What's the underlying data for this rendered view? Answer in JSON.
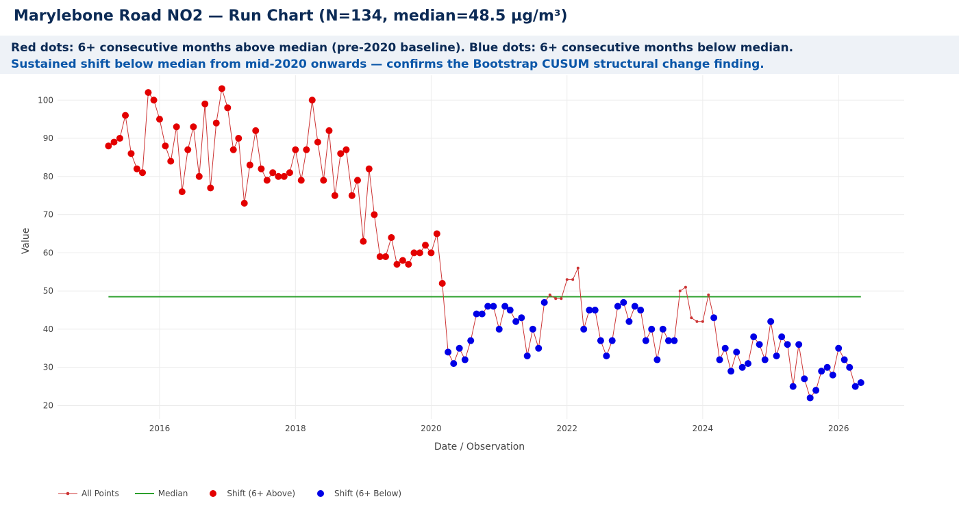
{
  "title": "Marylebone Road NO2 — Run Chart  (N=134, median=48.5 µg/m³)",
  "annotations": [
    "Red dots: 6+ consecutive months above median (pre-2020 baseline). Blue dots: 6+ consecutive months below median.",
    "Sustained shift below median from mid-2020 onwards — confirms the Bootstrap CUSUM structural change finding."
  ],
  "colors": {
    "line": "#cc3333",
    "median": "#2ca02c",
    "above": "#e30000",
    "below": "#0000e6",
    "grid": "#ececec",
    "title": "#0b2a55",
    "note_blue": "#0a56a8"
  },
  "chart_data": {
    "type": "line",
    "xlabel": "Date / Observation",
    "ylabel": "Value",
    "xlim": [
      "2014-07-01",
      "2026-12-20"
    ],
    "ylim": [
      16.5,
      106.5
    ],
    "x_ticks": [
      "2016",
      "2018",
      "2020",
      "2022",
      "2024",
      "2026"
    ],
    "y_ticks": [
      20,
      30,
      40,
      50,
      60,
      70,
      80,
      90,
      100
    ],
    "grid": true,
    "legend_position": "bottom-left",
    "median": 48.5,
    "x_start": "2015-04",
    "x_step": "1 month",
    "values": [
      88,
      89,
      90,
      96,
      86,
      82,
      81,
      102,
      100,
      95,
      88,
      84,
      93,
      76,
      87,
      93,
      80,
      99,
      77,
      94,
      103,
      98,
      87,
      90,
      73,
      83,
      92,
      82,
      79,
      81,
      80,
      80,
      81,
      87,
      79,
      87,
      100,
      89,
      79,
      92,
      75,
      86,
      87,
      75,
      79,
      63,
      82,
      70,
      59,
      59,
      64,
      57,
      58,
      57,
      60,
      60,
      62,
      60,
      65,
      52,
      34,
      31,
      35,
      32,
      37,
      44,
      44,
      46,
      46,
      40,
      46,
      45,
      42,
      43,
      33,
      40,
      35,
      47,
      49,
      48,
      48,
      53,
      53,
      56,
      40,
      45,
      45,
      37,
      33,
      37,
      46,
      47,
      42,
      46,
      45,
      37,
      40,
      32,
      40,
      37,
      37,
      50,
      51,
      43,
      42,
      42,
      49,
      43,
      32,
      35,
      29,
      34,
      30,
      31,
      38,
      36,
      32,
      42,
      33,
      38,
      36,
      25,
      36,
      27,
      22,
      24,
      29,
      30,
      28,
      35,
      32,
      30,
      25,
      26
    ],
    "classes": [
      "a",
      "a",
      "a",
      "a",
      "a",
      "a",
      "a",
      "a",
      "a",
      "a",
      "a",
      "a",
      "a",
      "a",
      "a",
      "a",
      "a",
      "a",
      "a",
      "a",
      "a",
      "a",
      "a",
      "a",
      "a",
      "a",
      "a",
      "a",
      "a",
      "a",
      "a",
      "a",
      "a",
      "a",
      "a",
      "a",
      "a",
      "a",
      "a",
      "a",
      "a",
      "a",
      "a",
      "a",
      "a",
      "a",
      "a",
      "a",
      "a",
      "a",
      "a",
      "a",
      "a",
      "a",
      "a",
      "a",
      "a",
      "a",
      "a",
      "a",
      "b",
      "b",
      "b",
      "b",
      "b",
      "b",
      "b",
      "b",
      "b",
      "b",
      "b",
      "b",
      "b",
      "b",
      "b",
      "b",
      "b",
      "b",
      "n",
      "n",
      "n",
      "n",
      "n",
      "n",
      "b",
      "b",
      "b",
      "b",
      "b",
      "b",
      "b",
      "b",
      "b",
      "b",
      "b",
      "b",
      "b",
      "b",
      "b",
      "b",
      "b",
      "n",
      "n",
      "n",
      "n",
      "n",
      "n",
      "b",
      "b",
      "b",
      "b",
      "b",
      "b",
      "b",
      "b",
      "b",
      "b",
      "b",
      "b",
      "b",
      "b",
      "b",
      "b",
      "b",
      "b",
      "b",
      "b",
      "b",
      "b",
      "b",
      "b",
      "b",
      "b",
      "b"
    ],
    "series": [
      {
        "name": "All Points",
        "style": "line+small-markers"
      },
      {
        "name": "Median",
        "style": "line"
      },
      {
        "name": "Shift (6+ Above)",
        "style": "markers"
      },
      {
        "name": "Shift (6+ Below)",
        "style": "markers"
      }
    ]
  }
}
